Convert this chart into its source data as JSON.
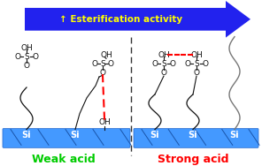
{
  "bg_color": "#ffffff",
  "arrow_color": "#2222ee",
  "arrow_text": "↑ Esterification activity",
  "arrow_text_color": "#ffff00",
  "arrow_fontsize": 7.5,
  "slab_color": "#4499ff",
  "slab_edge_color": "#2266cc",
  "weak_acid_label": "Weak acid",
  "strong_acid_label": "Strong acid",
  "weak_acid_color": "#00cc00",
  "strong_acid_color": "#ff0000",
  "label_fontsize": 9,
  "si_fontsize": 7,
  "dashed_line_color": "#333333",
  "red_dots_color": "#ff0000",
  "lc": "#111111",
  "gray_chain_color": "#777777"
}
